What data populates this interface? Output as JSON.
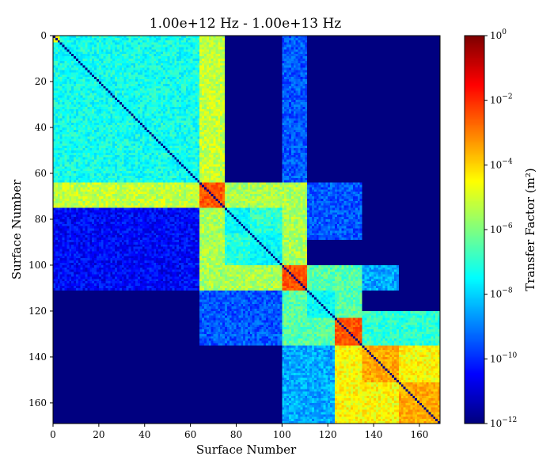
{
  "chart_data": {
    "type": "heatmap",
    "title": "1.00e+12 Hz - 1.00e+13 Hz",
    "xlabel": "Surface Number",
    "ylabel": "Surface Number",
    "colorbar_label": "Transfer Factor (m²)",
    "colormap": "jet",
    "log_scale": true,
    "color_range": [
      1e-12,
      1
    ],
    "xlim": [
      0,
      169
    ],
    "ylim": [
      169,
      0
    ],
    "x_ticks": [
      0,
      20,
      40,
      60,
      80,
      100,
      120,
      140,
      160
    ],
    "y_ticks": [
      0,
      20,
      40,
      60,
      80,
      100,
      120,
      140,
      160
    ],
    "colorbar_ticks": [
      {
        "value": 1e-12,
        "base": "10",
        "exp": "−12"
      },
      {
        "value": 1e-10,
        "base": "10",
        "exp": "−10"
      },
      {
        "value": 1e-08,
        "base": "10",
        "exp": "−8"
      },
      {
        "value": 1e-06,
        "base": "10",
        "exp": "−6"
      },
      {
        "value": 0.0001,
        "base": "10",
        "exp": "−4"
      },
      {
        "value": 0.01,
        "base": "10",
        "exp": "−2"
      },
      {
        "value": 1,
        "base": "10",
        "exp": "0"
      }
    ],
    "background_log10": -12,
    "blocks": [
      {
        "range": [
          0,
          2
        ],
        "log10": -4.5
      },
      {
        "range": [
          3,
          10
        ],
        "log10": -7.5
      },
      {
        "range": [
          11,
          18
        ],
        "log10": -7.5
      },
      {
        "range": [
          19,
          26
        ],
        "log10": -7.5
      },
      {
        "range": [
          27,
          34
        ],
        "log10": -7.5
      },
      {
        "range": [
          35,
          42
        ],
        "log10": -7.5
      },
      {
        "range": [
          43,
          50
        ],
        "log10": -7.5
      },
      {
        "range": [
          51,
          58
        ],
        "log10": -7.5
      },
      {
        "range": [
          59,
          63
        ],
        "log10": -7.5
      },
      {
        "range": [
          64,
          74
        ],
        "log10": -2.5
      },
      {
        "range": [
          75,
          85
        ],
        "log10": -7.5
      },
      {
        "range": [
          86,
          99
        ],
        "log10": -7.5
      },
      {
        "range": [
          100,
          110
        ],
        "log10": -2.5
      },
      {
        "range": [
          111,
          122
        ],
        "log10": -7.5
      },
      {
        "range": [
          123,
          134
        ],
        "log10": -2.5
      },
      {
        "range": [
          135,
          150
        ],
        "log10": -3.5
      },
      {
        "range": [
          151,
          168
        ],
        "log10": -3.5
      }
    ],
    "cross_regions": [
      {
        "rows": [
          0,
          74
        ],
        "cols": [
          0,
          63
        ],
        "log10": -7.3
      },
      {
        "rows": [
          0,
          63
        ],
        "cols": [
          64,
          74
        ],
        "log10": -5.2
      },
      {
        "rows": [
          64,
          74
        ],
        "cols": [
          0,
          63
        ],
        "log10": -5.2
      },
      {
        "rows": [
          0,
          63
        ],
        "cols": [
          100,
          110
        ],
        "log10": -9.5
      },
      {
        "rows": [
          64,
          110
        ],
        "cols": [
          64,
          110
        ],
        "log10": -7.0
      },
      {
        "rows": [
          64,
          74
        ],
        "cols": [
          64,
          110
        ],
        "log10": -5.5
      },
      {
        "rows": [
          100,
          110
        ],
        "cols": [
          64,
          110
        ],
        "log10": -5.5
      },
      {
        "rows": [
          64,
          110
        ],
        "cols": [
          100,
          110
        ],
        "log10": -5.5
      },
      {
        "rows": [
          64,
          110
        ],
        "cols": [
          64,
          74
        ],
        "log10": -5.5
      },
      {
        "rows": [
          75,
          110
        ],
        "cols": [
          0,
          63
        ],
        "log10": -10.5
      },
      {
        "rows": [
          64,
          88
        ],
        "cols": [
          111,
          134
        ],
        "log10": -9.5
      },
      {
        "rows": [
          100,
          134
        ],
        "cols": [
          100,
          134
        ],
        "log10": -6.5
      },
      {
        "rows": [
          111,
          134
        ],
        "cols": [
          64,
          99
        ],
        "log10": -9.5
      },
      {
        "rows": [
          100,
          110
        ],
        "cols": [
          135,
          150
        ],
        "log10": -8.5
      },
      {
        "rows": [
          123,
          168
        ],
        "cols": [
          123,
          168
        ],
        "log10": -4.5
      },
      {
        "rows": [
          135,
          168
        ],
        "cols": [
          100,
          122
        ],
        "log10": -8.5
      },
      {
        "rows": [
          120,
          134
        ],
        "cols": [
          135,
          168
        ],
        "log10": -7.0
      }
    ]
  }
}
